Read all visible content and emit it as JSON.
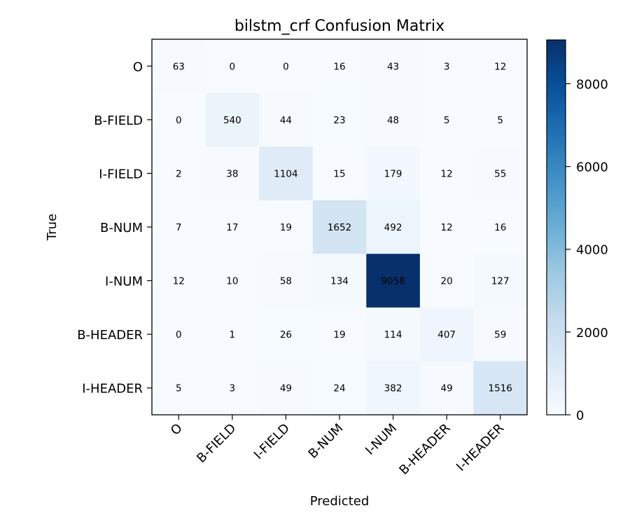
{
  "chart_data": {
    "type": "heatmap",
    "title": "bilstm_crf Confusion Matrix",
    "xlabel": "Predicted",
    "ylabel": "True",
    "x_categories": [
      "O",
      "B-FIELD",
      "I-FIELD",
      "B-NUM",
      "I-NUM",
      "B-HEADER",
      "I-HEADER"
    ],
    "y_categories": [
      "O",
      "B-FIELD",
      "I-FIELD",
      "B-NUM",
      "I-NUM",
      "B-HEADER",
      "I-HEADER"
    ],
    "values": [
      [
        63,
        0,
        0,
        16,
        43,
        3,
        12
      ],
      [
        0,
        540,
        44,
        23,
        48,
        5,
        5
      ],
      [
        2,
        38,
        1104,
        15,
        179,
        12,
        55
      ],
      [
        7,
        17,
        19,
        1652,
        492,
        12,
        16
      ],
      [
        12,
        10,
        58,
        134,
        9058,
        20,
        127
      ],
      [
        0,
        1,
        26,
        19,
        114,
        407,
        59
      ],
      [
        5,
        3,
        49,
        24,
        382,
        49,
        1516
      ]
    ],
    "colormap": "Blues",
    "color_range": [
      0,
      9058
    ],
    "colorbar_ticks": [
      0,
      2000,
      4000,
      6000,
      8000
    ]
  }
}
